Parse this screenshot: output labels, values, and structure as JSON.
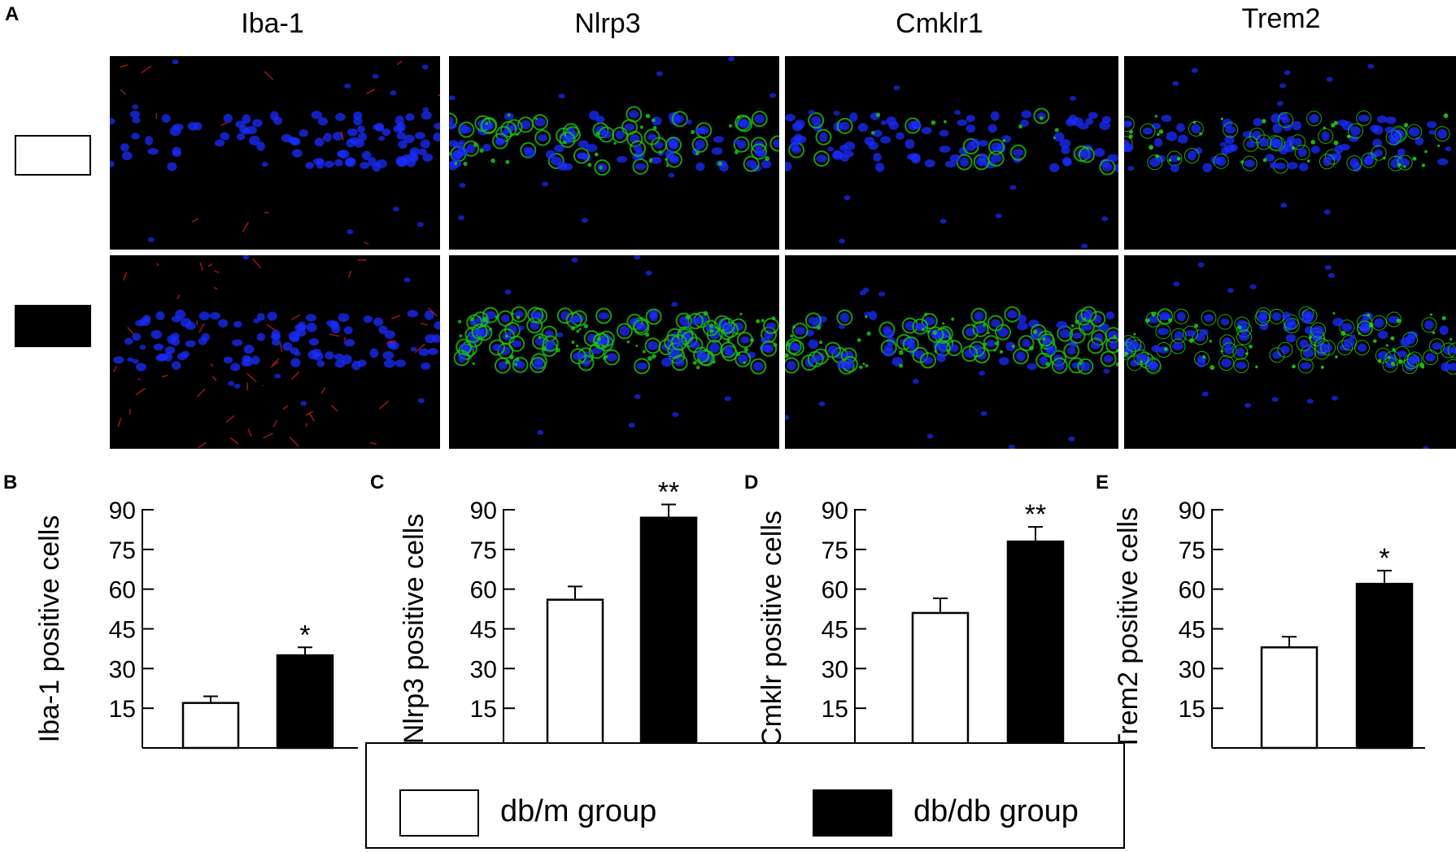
{
  "panel_a": {
    "letter": "A",
    "columns": [
      "Iba-1",
      "Nlrp3",
      "Cmklr1",
      "Trem2"
    ],
    "rows": [
      {
        "group_swatch": "white",
        "stain_colors": [
          "#d01818",
          "#19c419",
          "#19c419",
          "#19d919"
        ],
        "nuclei_color": "#1a2cff",
        "signal_density": [
          0.25,
          0.55,
          0.15,
          0.55
        ]
      },
      {
        "group_swatch": "black",
        "stain_colors": [
          "#d01818",
          "#19c419",
          "#19c419",
          "#19d919"
        ],
        "nuclei_color": "#1a2cff",
        "signal_density": [
          0.9,
          0.9,
          0.65,
          0.7
        ]
      }
    ]
  },
  "charts": {
    "b": {
      "letter": "B"
    },
    "c": {
      "letter": "C"
    },
    "d": {
      "letter": "D"
    },
    "e": {
      "letter": "E"
    }
  },
  "chart_data": [
    {
      "type": "bar",
      "panel": "B",
      "ylabel": "Iba-1 positive cells",
      "categories": [
        "db/m group",
        "db/db group"
      ],
      "values": [
        17,
        35
      ],
      "errors": [
        2.5,
        3
      ],
      "significance": [
        "",
        "*"
      ],
      "yticks": [
        15,
        30,
        45,
        60,
        75,
        90
      ],
      "ylim": [
        0,
        90
      ],
      "colors": [
        "#ffffff",
        "#000000"
      ]
    },
    {
      "type": "bar",
      "panel": "C",
      "ylabel": "Nlrp3 positive cells",
      "categories": [
        "db/m group",
        "db/db group"
      ],
      "values": [
        56,
        87
      ],
      "errors": [
        5,
        5
      ],
      "significance": [
        "",
        "**"
      ],
      "yticks": [
        15,
        30,
        45,
        60,
        75,
        90
      ],
      "ylim": [
        0,
        90
      ],
      "colors": [
        "#ffffff",
        "#000000"
      ]
    },
    {
      "type": "bar",
      "panel": "D",
      "ylabel": "Cmklr positive cells",
      "categories": [
        "db/m group",
        "db/db group"
      ],
      "values": [
        51,
        78
      ],
      "errors": [
        5.5,
        5.5
      ],
      "significance": [
        "",
        "**"
      ],
      "yticks": [
        15,
        30,
        45,
        60,
        75,
        90
      ],
      "ylim": [
        0,
        90
      ],
      "colors": [
        "#ffffff",
        "#000000"
      ]
    },
    {
      "type": "bar",
      "panel": "E",
      "ylabel": "Trem2 positive cells",
      "categories": [
        "db/m group",
        "db/db group"
      ],
      "values": [
        38,
        62
      ],
      "errors": [
        4,
        5
      ],
      "significance": [
        "",
        "*"
      ],
      "yticks": [
        15,
        30,
        45,
        60,
        75,
        90
      ],
      "ylim": [
        0,
        90
      ],
      "colors": [
        "#ffffff",
        "#000000"
      ]
    }
  ],
  "legend": {
    "items": [
      {
        "label": "db/m group",
        "color": "#ffffff"
      },
      {
        "label": "db/db group",
        "color": "#000000"
      }
    ]
  }
}
